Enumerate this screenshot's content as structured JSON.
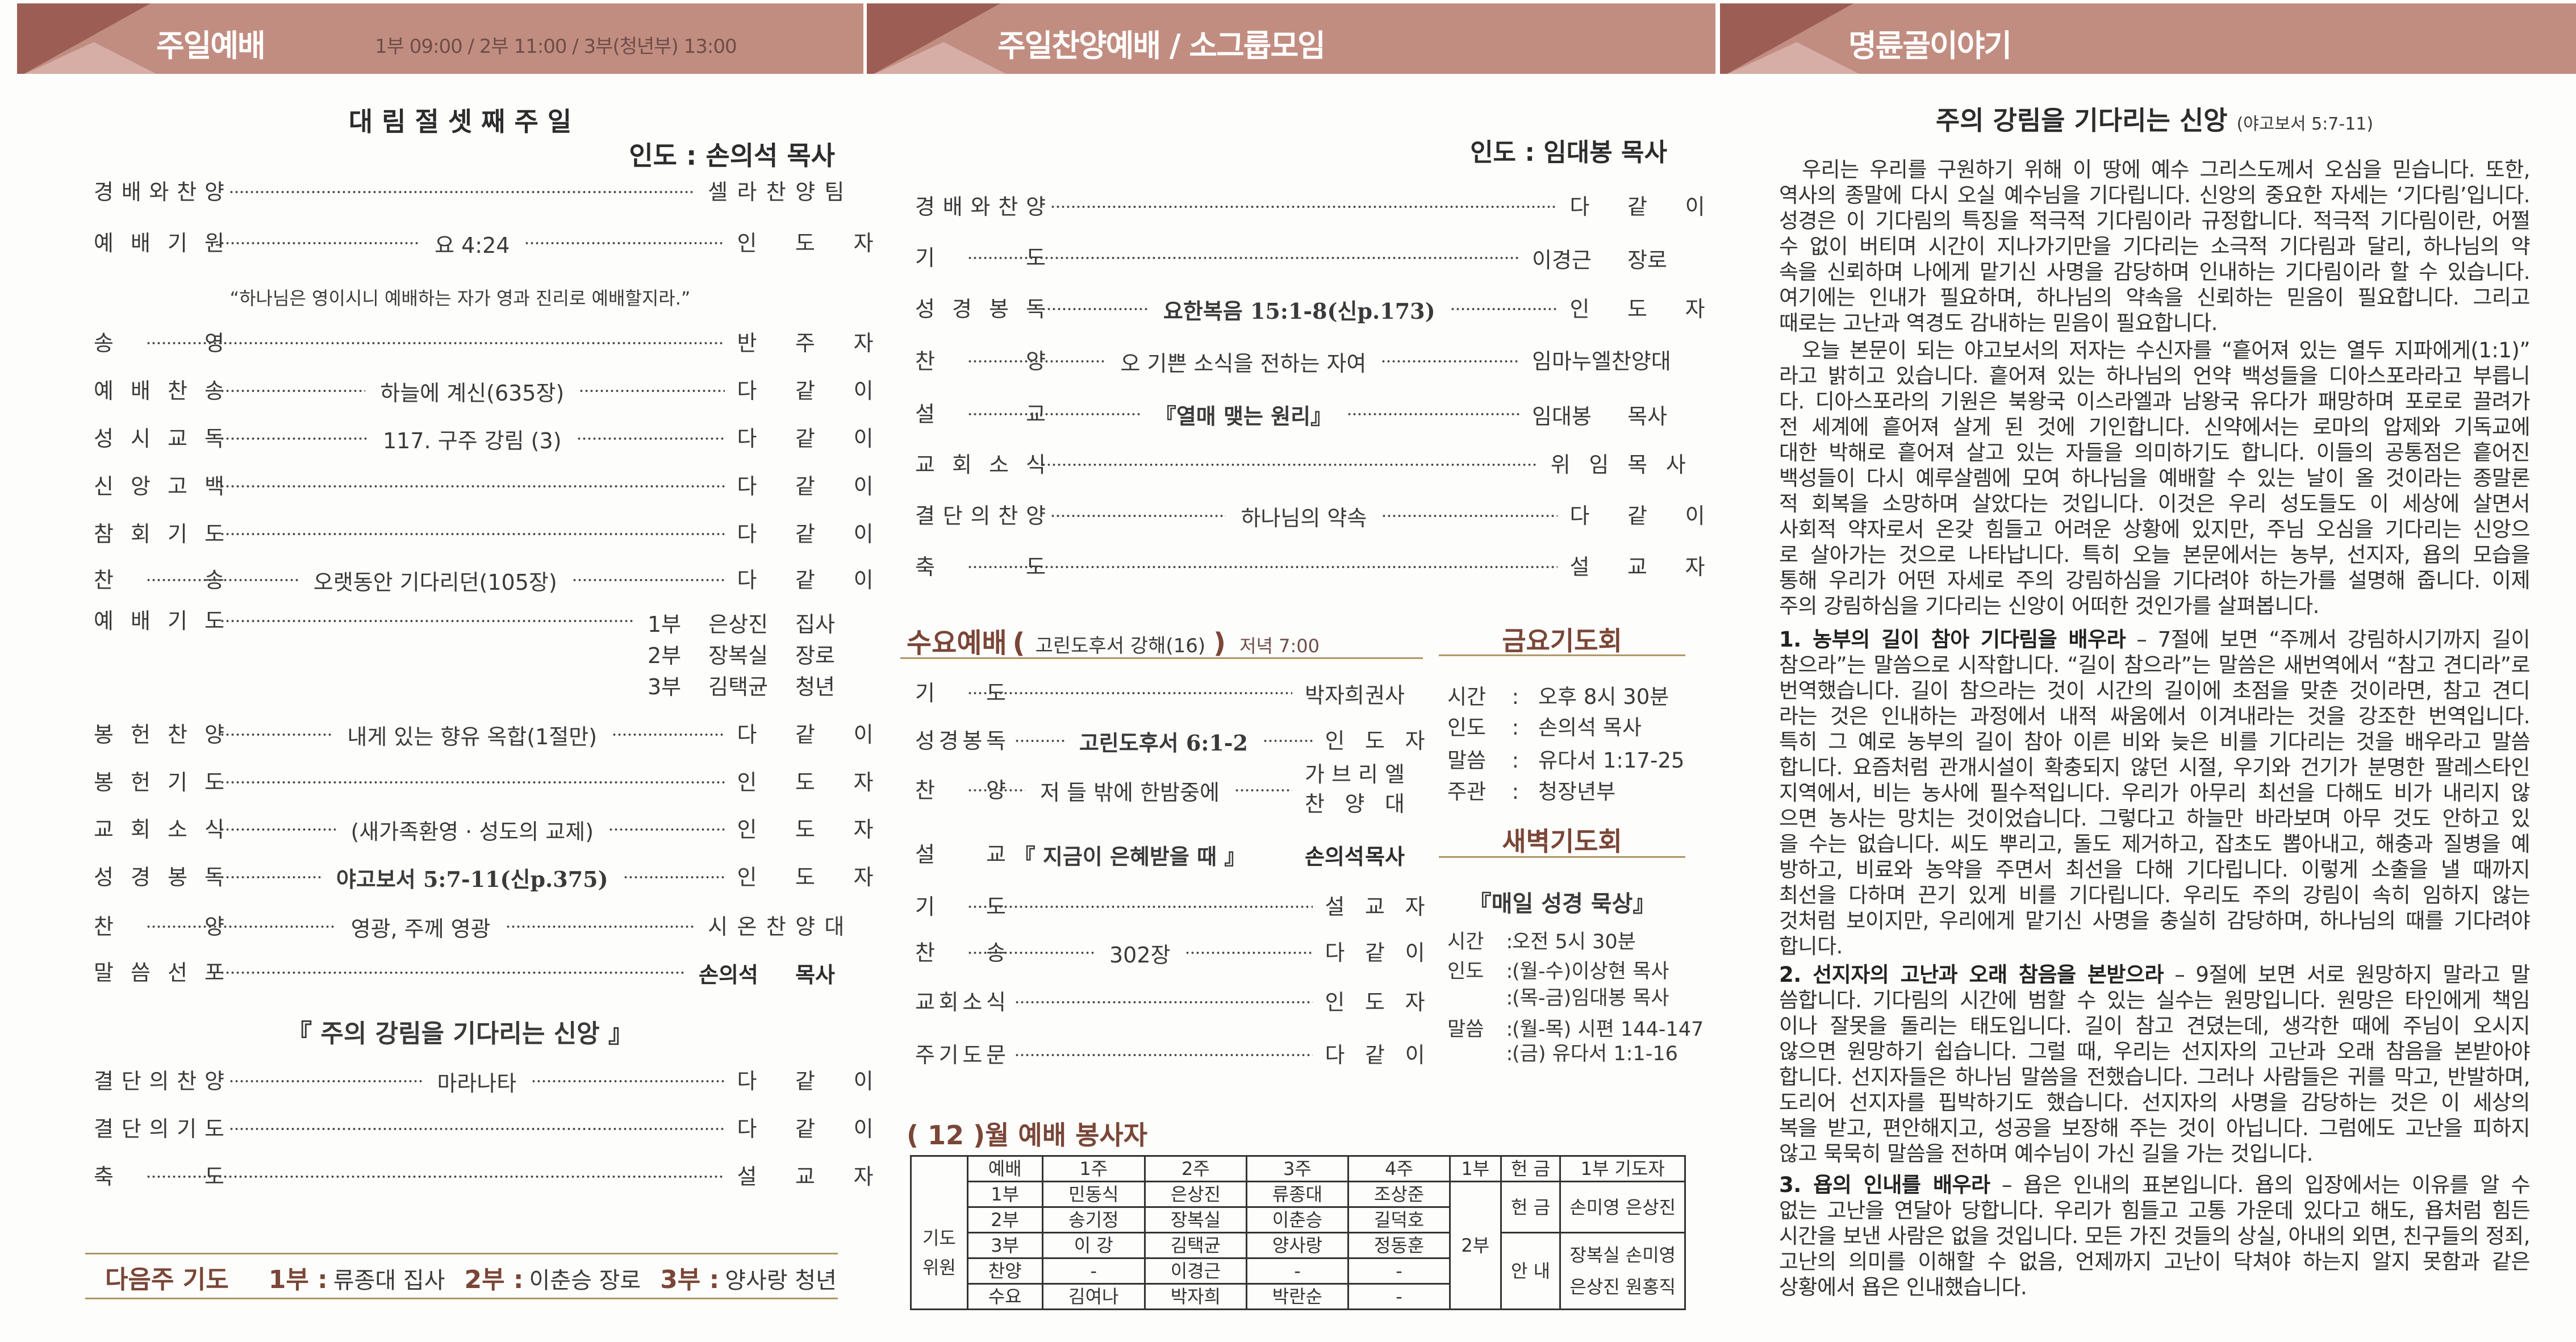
{
  "colors": {
    "band": "#c28d81",
    "band_dark": "#9c5e54",
    "band_light": "#d6aea6",
    "accent_brown": "#7a4637",
    "gold_rule": "#d6b25a"
  },
  "left": {
    "header": {
      "title": "주일예배",
      "times": "1부 09:00 / 2부 11:00 / 3부(청년부) 13:00"
    },
    "service_title": "대 림 절 셋 째 주 일",
    "leader": "인도 : 손의석 목사",
    "quote": "“하나님은 영이시니 예배하는 자가 영과 진리로 예배할지라.”",
    "order": [
      {
        "label": "경배와찬양",
        "center": "",
        "right": "셀라찬양팀"
      },
      {
        "label": "예배기원",
        "center": "요 4:24",
        "right": "인도자"
      },
      {
        "label": "송영",
        "center": "",
        "right": "반주자"
      },
      {
        "label": "예배찬송",
        "center": "하늘에 계신(635장)",
        "right": "다같이"
      },
      {
        "label": "성시교독",
        "center": "117. 구주 강림 (3)",
        "right": "다같이"
      },
      {
        "label": "신앙고백",
        "center": "",
        "right": "다같이"
      },
      {
        "label": "참회기도",
        "center": "",
        "right": "다같이"
      },
      {
        "label": "찬송",
        "center": "오랫동안 기다리던(105장)",
        "right": "다같이"
      },
      {
        "label": "예배기도",
        "center": "",
        "right_lines": [
          "1부 은상진 집사",
          "2부 장복실 장로",
          "3부 김택균 청년"
        ]
      },
      {
        "label": "봉헌찬양",
        "center": "내게 있는 향유 옥합(1절만)",
        "right": "다같이"
      },
      {
        "label": "봉헌기도",
        "center": "",
        "right": "인도자"
      },
      {
        "label": "교회소식",
        "center": "(새가족환영 · 성도의 교제)",
        "right": "인도자"
      },
      {
        "label": "성경봉독",
        "center": "야고보서 5:7-11(신p.375)",
        "right": "인도자",
        "center_style": "serif"
      },
      {
        "label": "찬양",
        "center": "영광, 주께 영광",
        "right": "시온찬양대"
      },
      {
        "label": "말씀선포",
        "center": "",
        "right": "손의석 목사",
        "right_style": "strong"
      },
      {
        "label": "결단의찬양",
        "center": "마라나타",
        "right": "다같이"
      },
      {
        "label": "결단의기도",
        "center": "",
        "right": "다같이"
      },
      {
        "label": "축도",
        "center": "",
        "right": "설교자"
      }
    ],
    "sermon_title": "『 주의 강림을 기다리는 신앙 』",
    "next_week": {
      "label": "다음주 기도",
      "items": [
        {
          "part": "1부 :",
          "name": "류종대 집사"
        },
        {
          "part": "2부 :",
          "name": "이춘승 장로"
        },
        {
          "part": "3부 :",
          "name": "양사랑 청년"
        }
      ]
    }
  },
  "middle": {
    "header": {
      "title": "주일찬양예배 / 소그룹모임"
    },
    "leader": "인도 : 임대봉 목사",
    "order": [
      {
        "label": "경배와찬양",
        "center": "",
        "right": "다같이"
      },
      {
        "label": "기도",
        "center": "",
        "right": "이경근 장로"
      },
      {
        "label": "성경봉독",
        "center": "요한복음 15:1-8(신p.173)",
        "right": "인도자",
        "center_style": "serif"
      },
      {
        "label": "찬양",
        "center": "오 기쁜 소식을 전하는 자여",
        "right": "임마누엘찬양대"
      },
      {
        "label": "설교",
        "center": "『열매 맺는 원리』",
        "right": "임대봉 목사",
        "center_style": "serif"
      },
      {
        "label": "교회소식",
        "center": "",
        "right": "위임목사"
      },
      {
        "label": "결단의찬양",
        "center": "하나님의 약속",
        "right": "다같이"
      },
      {
        "label": "축도",
        "center": "",
        "right": "설교자"
      }
    ],
    "wednesday": {
      "title": "수요예배",
      "open_paren": "(",
      "subtitle": "고린도후서 강해(16)",
      "close_paren": ")",
      "time": "저녁 7:00",
      "order": [
        {
          "label": "기도",
          "center": "",
          "right": "박자희 권사"
        },
        {
          "label": "성경봉독",
          "center": "고린도후서 6:1-2",
          "right": "인도자",
          "center_style": "serif"
        },
        {
          "label": "찬양",
          "center": "저 들 밖에 한밤중에",
          "right_lines": [
            "가브리엘",
            "찬양대"
          ]
        },
        {
          "label": "설교",
          "center": "『 지금이 은혜받을 때 』",
          "right": "손의석 목사",
          "center_style": "serif",
          "no_dots": true,
          "right_style": "strong"
        },
        {
          "label": "기도",
          "center": "",
          "right": "설교자"
        },
        {
          "label": "찬송",
          "center": "302장",
          "right": "다같이"
        },
        {
          "label": "교회소식",
          "center": "",
          "right": "인도자"
        },
        {
          "label": "주기도문",
          "center": "",
          "right": "다같이"
        }
      ]
    },
    "friday": {
      "title": "금요기도회",
      "lines": [
        {
          "key": "시간",
          "value": "오후 8시 30분"
        },
        {
          "key": "인도",
          "value": "손의석 목사"
        },
        {
          "key": "말씀",
          "value": "유다서 1:17-25"
        },
        {
          "key": "주관",
          "value": "청장년부"
        }
      ]
    },
    "dawn": {
      "title": "새벽기도회",
      "subtitle": "『매일 성경 묵상』",
      "lines": [
        {
          "key": "시간",
          "value": "오전 5시 30분"
        },
        {
          "key": "인도",
          "value": "(월-수)이상현 목사"
        },
        {
          "key": "",
          "value": "(목-금)임대봉 목사"
        },
        {
          "key": "말씀",
          "value": "(월-목) 시편 144-147"
        },
        {
          "key": "",
          "value": "(금) 유다서 1:1-16"
        }
      ]
    },
    "roster": {
      "title": "( 12 )월 예배 봉사자",
      "side_label": [
        "기도",
        "위원"
      ],
      "headers": [
        "예배",
        "1주",
        "2주",
        "3주",
        "4주",
        "1부",
        "헌 금",
        "1부 기도자"
      ],
      "rows": [
        [
          "1부",
          "민동식",
          "은상진",
          "류종대",
          "조상준"
        ],
        [
          "2부",
          "송기정",
          "장복실",
          "이춘승",
          "길덕호"
        ],
        [
          "3부",
          "이 강",
          "김택균",
          "양사랑",
          "정동훈"
        ],
        [
          "찬양",
          "-",
          "이경근",
          "-",
          "-"
        ],
        [
          "수요",
          "김여나",
          "박자희",
          "박란순",
          "-"
        ]
      ],
      "second_service": "2부",
      "offering_label": "헌 금",
      "offering_names": "손미영 은상진",
      "usher_label": "안 내",
      "usher_names": [
        "장복실 손미영",
        "은상진 원홍직"
      ]
    }
  },
  "right": {
    "header": {
      "title": "명륜골이야기"
    },
    "article_title": "주의 강림을 기다리는 신앙",
    "article_ref": "(야고보서 5:7-11)",
    "paragraphs": [
      {
        "heading": "",
        "lines": [
          "우리는 우리를 구원하기 위해 이 땅에 예수 그리스도께서 오심을 믿습니다. 또한,",
          "역사의 종말에 다시 오실 예수님을 기다립니다. 신앙의 중요한 자세는 ‘기다림’입니다.",
          "성경은 이 기다림의 특징을 적극적 기다림이라 규정합니다. 적극적 기다림이란, 어쩔",
          "수 없이 버티며 시간이 지나가기만을 기다리는 소극적 기다림과 달리, 하나님의 약",
          "속을 신뢰하며 나에게 맡기신 사명을 감당하며 인내하는 기다림이라 할 수 있습니다.",
          "여기에는 인내가 필요하며, 하나님의 약속을 신뢰하는 믿음이 필요합니다. 그리고",
          "때로는 고난과 역경도 감내하는 믿음이 필요합니다."
        ]
      },
      {
        "heading": "",
        "lines": [
          "오늘 본문이 되는 야고보서의 저자는 수신자를 “흩어져 있는 열두 지파에게(1:1)”",
          "라고 밝히고 있습니다. 흩어져 있는 하나님의 언약 백성들을 디아스포라라고 부릅니",
          "다. 디아스포라의 기원은 북왕국 이스라엘과 남왕국 유다가 패망하며 포로로 끌려가",
          "전 세계에 흩어져 살게 된 것에 기인합니다. 신약에서는 로마의 압제와 기독교에",
          "대한 박해로 흩어져 살고 있는 자들을 의미하기도 합니다. 이들의 공통점은 흩어진",
          "백성들이 다시 예루살렘에 모여 하나님을 예배할 수 있는 날이 올 것이라는 종말론",
          "적 회복을 소망하며 살았다는 것입니다. 이것은 우리 성도들도 이 세상에 살면서",
          "사회적 약자로서 온갖 힘들고 어려운 상황에 있지만, 주님 오심을 기다리는 신앙으",
          "로 살아가는 것으로 나타납니다. 특히 오늘 본문에서는 농부, 선지자, 욥의 모습을",
          "통해 우리가 어떤 자세로 주의 강림하심을 기다려야 하는가를 설명해 줍니다. 이제",
          "주의 강림하심을 기다리는 신앙이 어떠한 것인가를 살펴봅니다."
        ]
      },
      {
        "heading": "1. 농부의 길이 참아 기다림을 배우라",
        "lines": [
          " – 7절에 보면 “주께서 강림하시기까지 길이",
          "참으라”는 말씀으로 시작합니다. “길이 참으라”는 말씀은 새번역에서 “참고 견디라”로",
          "번역했습니다. 길이 참으라는 것이 시간의 길이에 초점을 맞춘 것이라면, 참고 견디",
          "라는 것은 인내하는 과정에서 내적 싸움에서 이겨내라는 것을 강조한 번역입니다.",
          "특히 그 예로 농부의 길이 참아 이른 비와 늦은 비를 기다리는 것을 배우라고 말씀",
          "합니다. 요즘처럼 관개시설이 확충되지 않던 시절, 우기와 건기가 분명한 팔레스타인",
          "지역에서, 비는 농사에 필수적입니다. 우리가 아무리 최선을 다해도 비가 내리지 않",
          "으면 농사는 망치는 것이었습니다. 그렇다고 하늘만 바라보며 아무 것도 안하고 있",
          "을 수는 없습니다. 씨도 뿌리고, 돌도 제거하고, 잡초도 뽑아내고, 해충과 질병을 예",
          "방하고, 비료와 농약을 주면서 최선을 다해 기다립니다. 이렇게 소출을 낼 때까지",
          "최선을 다하며 끈기 있게 비를 기다립니다. 우리도 주의 강림이 속히 임하지 않는",
          "것처럼 보이지만, 우리에게 맡기신 사명을 충실히 감당하며, 하나님의 때를 기다려야",
          "합니다."
        ]
      },
      {
        "heading": "2. 선지자의 고난과 오래 참음을 본받으라",
        "lines": [
          " – 9절에 보면 서로 원망하지 말라고 말",
          "씀합니다. 기다림의 시간에 범할 수 있는 실수는 원망입니다. 원망은 타인에게 책임",
          "이나 잘못을 돌리는 태도입니다. 길이 참고 견뎠는데, 생각한 때에 주님이 오시지",
          "않으면 원망하기 쉽습니다. 그럴 때, 우리는 선지자의 고난과 오래 참음을 본받아야",
          "합니다. 선지자들은 하나님 말씀을 전했습니다. 그러나 사람들은 귀를 막고, 반발하며,",
          "도리어 선지자를 핍박하기도 했습니다. 선지자의 사명을 감당하는 것은 이 세상의",
          "복을 받고, 편안해지고, 성공을 보장해 주는 것이 아닙니다. 그럼에도 고난을 피하지",
          "않고 묵묵히 말씀을 전하며 예수님이 가신 길을 가는 것입니다."
        ]
      },
      {
        "heading": "3. 욥의 인내를 배우라",
        "lines": [
          " – 욥은 인내의 표본입니다. 욥의 입장에서는 이유를 알 수",
          "없는 고난을 연달아 당합니다. 우리가 힘들고 고통 가운데 있다고 해도, 욥처럼 힘든",
          "시간을 보낸 사람은 없을 것입니다. 모든 가진 것들의 상실, 아내의 외면, 친구들의 정죄,",
          "고난의 의미를 이해할 수 없음, 언제까지 고난이 닥쳐야 하는지 알지 못함과 같은",
          "상황에서 욥은 인내했습니다."
        ]
      }
    ]
  }
}
